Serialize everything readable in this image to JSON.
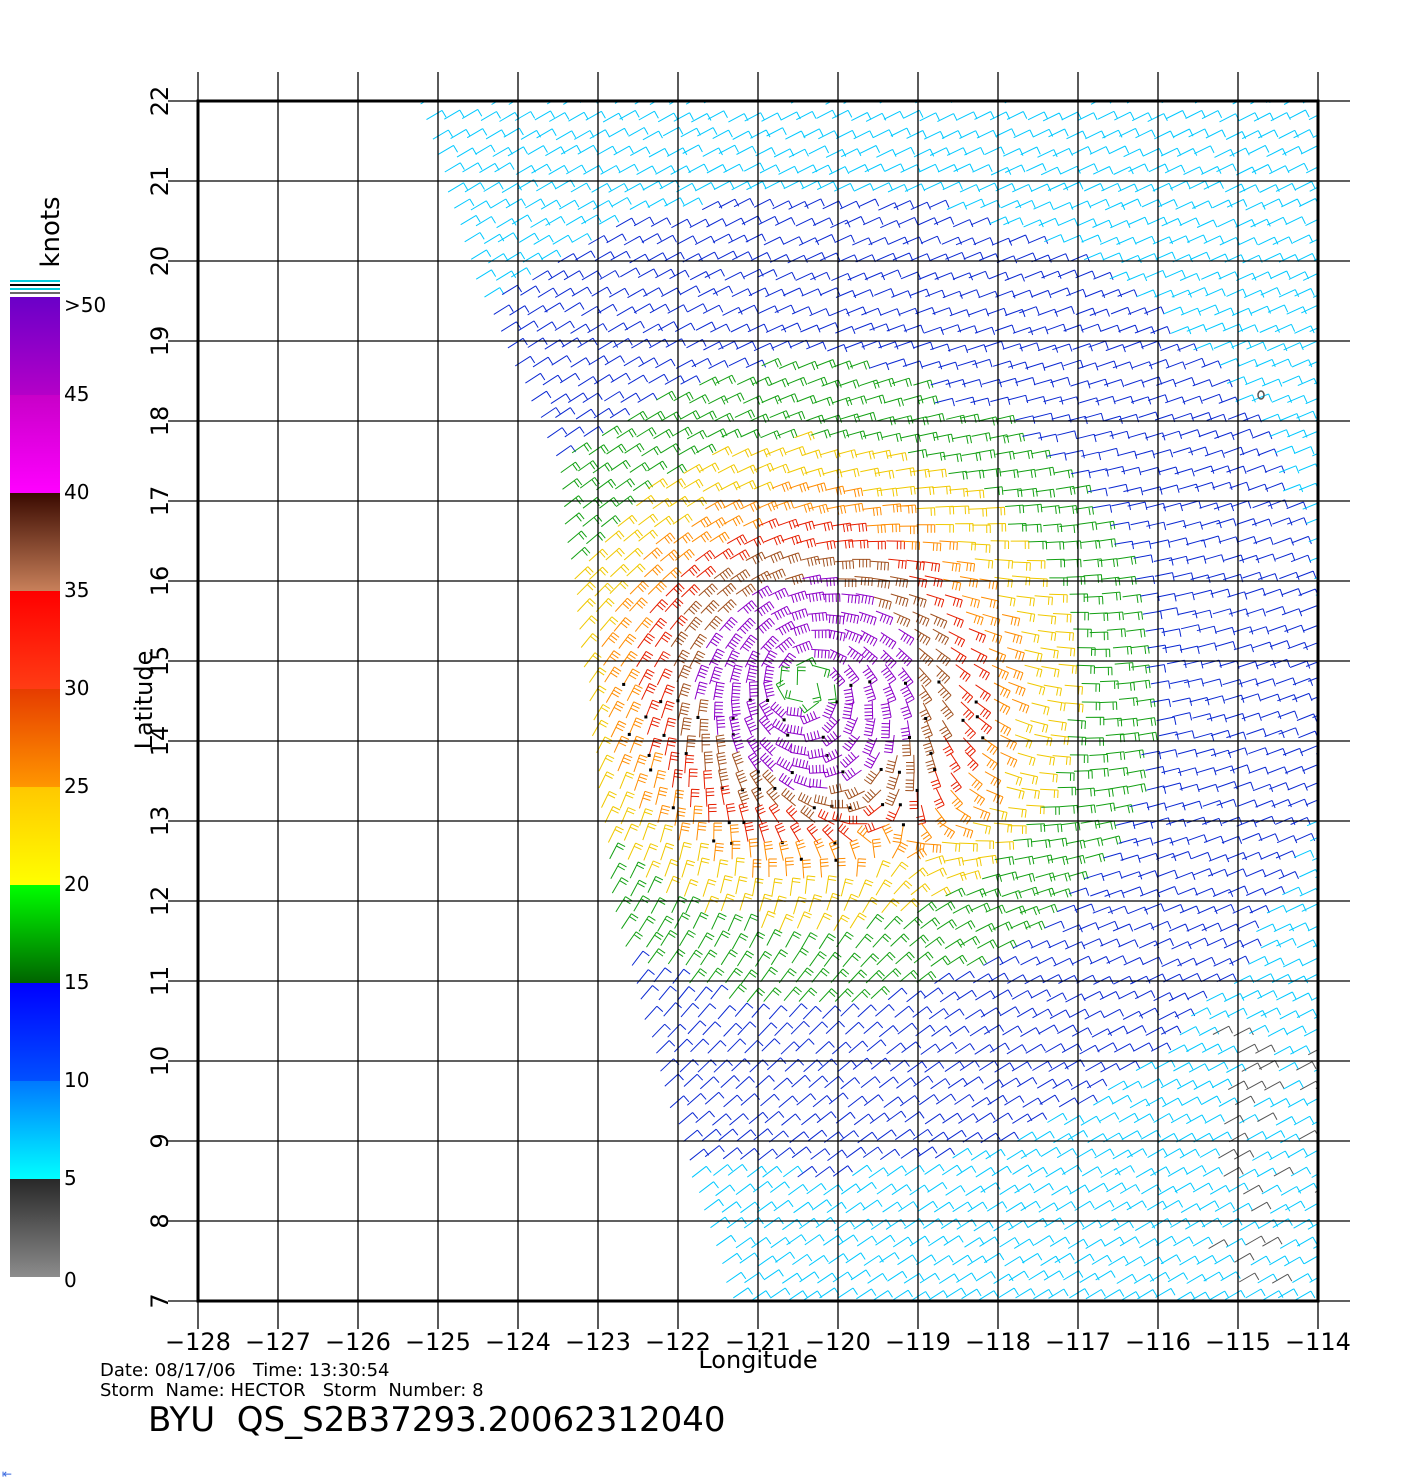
{
  "chart_data": {
    "type": "scatter",
    "subtype": "wind-barb field",
    "xlabel": "Longitude",
    "ylabel": "Latitude",
    "xlim": [
      -128,
      -114
    ],
    "ylim": [
      7,
      22
    ],
    "x_ticks": [
      -128,
      -127,
      -126,
      -125,
      -124,
      -123,
      -122,
      -121,
      -120,
      -119,
      -118,
      -117,
      -116,
      -115,
      -114
    ],
    "x_tick_labels": [
      "−128",
      "−127",
      "−126",
      "−125",
      "−124",
      "−123",
      "−122",
      "−121",
      "−120",
      "−119",
      "−118",
      "−117",
      "−116",
      "−115",
      "−114"
    ],
    "y_ticks": [
      7,
      8,
      9,
      10,
      11,
      12,
      13,
      14,
      15,
      16,
      17,
      18,
      19,
      20,
      21,
      22
    ],
    "y_tick_labels": [
      "7",
      "8",
      "9",
      "10",
      "11",
      "12",
      "13",
      "14",
      "15",
      "16",
      "17",
      "18",
      "19",
      "20",
      "21",
      "22"
    ],
    "grid": true,
    "storm_center": {
      "lon": -120.4,
      "lat": 14.7
    },
    "swath": {
      "west_edge": [
        {
          "lon": -125.2,
          "lat": 22
        },
        {
          "lon": -124.6,
          "lat": 20
        },
        {
          "lon": -123.5,
          "lat": 17.5
        },
        {
          "lon": -123.1,
          "lat": 14.5
        },
        {
          "lon": -122.8,
          "lat": 12
        },
        {
          "lon": -122.1,
          "lat": 9.5
        },
        {
          "lon": -121.3,
          "lat": 7
        }
      ],
      "east_lon": -113.8
    },
    "colorbar": {
      "title": "knots",
      "labels": [
        ">50",
        "45",
        "40",
        "35",
        "30",
        "25",
        "20",
        "15",
        "10",
        "5",
        "0"
      ],
      "bands": [
        {
          "from": 45,
          "to": 50,
          "colors": [
            "#6a00c8",
            "#b400c8"
          ]
        },
        {
          "from": 40,
          "to": 45,
          "colors": [
            "#c800c8",
            "#ff00ff"
          ]
        },
        {
          "from": 35,
          "to": 40,
          "colors": [
            "#3a0a00",
            "#c8805a"
          ]
        },
        {
          "from": 30,
          "to": 35,
          "colors": [
            "#ff0000",
            "#ff3c14"
          ]
        },
        {
          "from": 25,
          "to": 30,
          "colors": [
            "#e63c00",
            "#ff9600"
          ]
        },
        {
          "from": 20,
          "to": 25,
          "colors": [
            "#ffc800",
            "#ffff00"
          ]
        },
        {
          "from": 15,
          "to": 20,
          "colors": [
            "#00ff00",
            "#006400"
          ]
        },
        {
          "from": 10,
          "to": 15,
          "colors": [
            "#0000ff",
            "#0050ff"
          ]
        },
        {
          "from": 5,
          "to": 10,
          "colors": [
            "#0078ff",
            "#00ffff"
          ]
        },
        {
          "from": 0,
          "to": 5,
          "colors": [
            "#282828",
            "#8c8c8c"
          ]
        }
      ]
    },
    "speed_colors": {
      "gray": "#555555",
      "cyan": "#00c8ff",
      "blue": "#0a28d2",
      "green": "#14a014",
      "yellow": "#f0c800",
      "orange": "#ff8c00",
      "red": "#e61e00",
      "brown": "#a0501e",
      "purple": "#8c00c8"
    }
  },
  "footer": {
    "date_time": "Date: 08/17/06   Time: 13:30:54",
    "storm": "Storm  Name: HECTOR   Storm  Number: 8",
    "file_id": "BYU  QS_S2B37293.20062312040"
  },
  "corner_mark": "⇤"
}
